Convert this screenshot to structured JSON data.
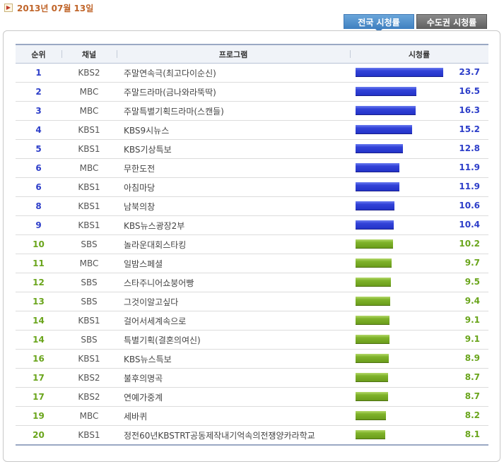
{
  "header": {
    "date": "2013년 07월 13일"
  },
  "tabs": [
    {
      "label": "전국 시청률",
      "active": true
    },
    {
      "label": "수도권 시청률",
      "active": false
    }
  ],
  "table": {
    "columns": [
      "순위",
      "채널",
      "프로그램",
      "시청률"
    ],
    "max_rating": 23.7,
    "rows": [
      {
        "rank": "1",
        "channel": "KBS2",
        "program": "주말연속극(최고다이순신)",
        "rating": "23.7",
        "color": "blue"
      },
      {
        "rank": "2",
        "channel": "MBC",
        "program": "주말드라마(금나와라뚝딱)",
        "rating": "16.5",
        "color": "blue"
      },
      {
        "rank": "3",
        "channel": "MBC",
        "program": "주말특별기획드라마(스캔들)",
        "rating": "16.3",
        "color": "blue"
      },
      {
        "rank": "4",
        "channel": "KBS1",
        "program": "KBS9시뉴스",
        "rating": "15.2",
        "color": "blue"
      },
      {
        "rank": "5",
        "channel": "KBS1",
        "program": "KBS기상특보",
        "rating": "12.8",
        "color": "blue"
      },
      {
        "rank": "6",
        "channel": "MBC",
        "program": "무한도전",
        "rating": "11.9",
        "color": "blue"
      },
      {
        "rank": "6",
        "channel": "KBS1",
        "program": "아침마당",
        "rating": "11.9",
        "color": "blue"
      },
      {
        "rank": "8",
        "channel": "KBS1",
        "program": "남북의창",
        "rating": "10.6",
        "color": "blue"
      },
      {
        "rank": "9",
        "channel": "KBS1",
        "program": "KBS뉴스광장2부",
        "rating": "10.4",
        "color": "blue"
      },
      {
        "rank": "10",
        "channel": "SBS",
        "program": "놀라운대회스타킹",
        "rating": "10.2",
        "color": "green"
      },
      {
        "rank": "11",
        "channel": "MBC",
        "program": "일밤스페셜",
        "rating": "9.7",
        "color": "green"
      },
      {
        "rank": "12",
        "channel": "SBS",
        "program": "스타주니어쇼붕어빵",
        "rating": "9.5",
        "color": "green"
      },
      {
        "rank": "13",
        "channel": "SBS",
        "program": "그것이알고싶다",
        "rating": "9.4",
        "color": "green"
      },
      {
        "rank": "14",
        "channel": "KBS1",
        "program": "걸어서세계속으로",
        "rating": "9.1",
        "color": "green"
      },
      {
        "rank": "14",
        "channel": "SBS",
        "program": "특별기획(결혼의여신)",
        "rating": "9.1",
        "color": "green"
      },
      {
        "rank": "16",
        "channel": "KBS1",
        "program": "KBS뉴스특보",
        "rating": "8.9",
        "color": "green"
      },
      {
        "rank": "17",
        "channel": "KBS2",
        "program": "불후의명곡",
        "rating": "8.7",
        "color": "green"
      },
      {
        "rank": "17",
        "channel": "KBS2",
        "program": "연예가중계",
        "rating": "8.7",
        "color": "green"
      },
      {
        "rank": "19",
        "channel": "MBC",
        "program": "세바퀴",
        "rating": "8.2",
        "color": "green"
      },
      {
        "rank": "20",
        "channel": "KBS1",
        "program": "정전60년KBSTRT공동제작내기억속의전쟁양카라학교",
        "rating": "8.1",
        "color": "green"
      }
    ]
  }
}
